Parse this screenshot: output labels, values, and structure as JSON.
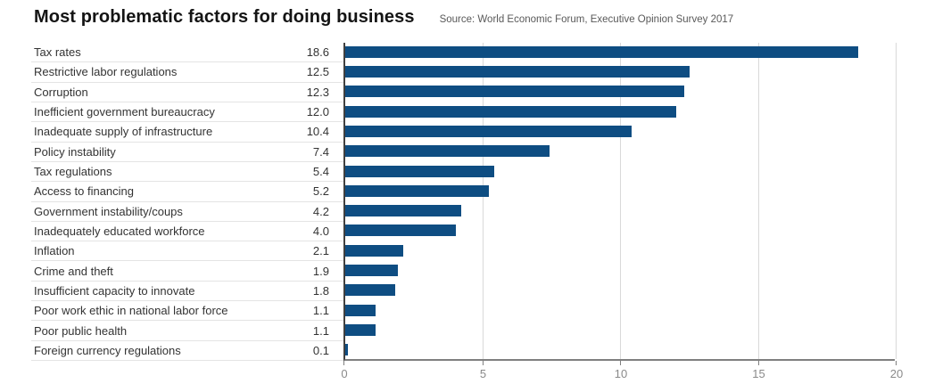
{
  "header": {
    "title": "Most problematic factors for doing business",
    "source": "Source: World Economic Forum, Executive Opinion Survey 2017"
  },
  "chart_data": {
    "type": "bar",
    "orientation": "horizontal",
    "title": "Most problematic factors for doing business",
    "source": "Source: World Economic Forum, Executive Opinion Survey 2017",
    "categories": [
      "Tax rates",
      "Restrictive labor regulations",
      "Corruption",
      "Inefficient government bureaucracy",
      "Inadequate supply of infrastructure",
      "Policy instability",
      "Tax regulations",
      "Access to financing",
      "Government instability/coups",
      "Inadequately educated workforce",
      "Inflation",
      "Crime and theft",
      "Insufficient capacity to innovate",
      "Poor work ethic in national labor force",
      "Poor public health",
      "Foreign currency regulations"
    ],
    "values": [
      18.6,
      12.5,
      12.3,
      12.0,
      10.4,
      7.4,
      5.4,
      5.2,
      4.2,
      4.0,
      2.1,
      1.9,
      1.8,
      1.1,
      1.1,
      0.1
    ],
    "value_labels": [
      "18.6",
      "12.5",
      "12.3",
      "12.0",
      "10.4",
      "7.4",
      "5.4",
      "5.2",
      "4.2",
      "4.0",
      "2.1",
      "1.9",
      "1.8",
      "1.1",
      "1.1",
      "0.1"
    ],
    "x_ticks": [
      0,
      5,
      10,
      15,
      20
    ],
    "xlim": [
      0,
      20
    ],
    "grid": "vertical",
    "legend": "none",
    "bar_color": "#0e4d82",
    "gridline_color": "#d9d9d9",
    "axis_color": "#7f7f7f",
    "zero_line_color": "#404040",
    "tick_label_color": "#8a8a8a",
    "label_color": "#333333"
  }
}
